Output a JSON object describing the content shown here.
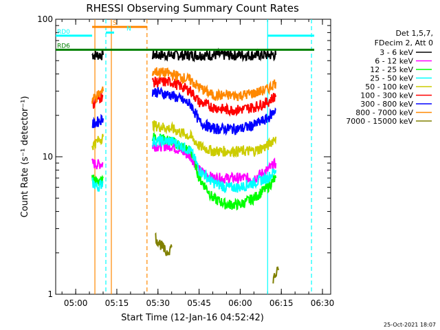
{
  "chart_data": {
    "type": "line",
    "title": "RHESSI Observing Summary Count Rates",
    "xlabel": "Start Time (12-Jan-16 04:52:42)",
    "ylabel": "Count Rate (s⁻¹ detector⁻¹)",
    "yscale": "log",
    "ylim": [
      1,
      100
    ],
    "xlim": [
      "04:52:42",
      "06:33:00"
    ],
    "x_ticks": [
      "05:00",
      "05:15",
      "05:30",
      "05:45",
      "06:00",
      "06:15",
      "06:30"
    ],
    "y_ticks": [
      "1",
      "10",
      "100"
    ],
    "legend_header": [
      "Det 1,5,7,",
      "FDecim 2, Att 0"
    ],
    "legend_position": "right",
    "series": [
      {
        "name": "3 - 6 keV",
        "color": "#000000",
        "segments": [
          {
            "x": [
              "05:06",
              "05:08",
              "05:10"
            ],
            "y": [
              55,
              55,
              55
            ]
          },
          {
            "x": [
              "05:28",
              "05:35",
              "05:45",
              "05:55",
              "06:05",
              "06:10",
              "06:13"
            ],
            "y": [
              55,
              55,
              55,
              55,
              55,
              55,
              55
            ]
          }
        ]
      },
      {
        "name": "6 - 12 keV",
        "color": "#ff00ff",
        "segments": [
          {
            "x": [
              "05:06",
              "05:08",
              "05:10"
            ],
            "y": [
              9,
              8.8,
              9
            ]
          },
          {
            "x": [
              "05:28",
              "05:35",
              "05:42",
              "05:45",
              "05:50",
              "05:55",
              "06:00",
              "06:05",
              "06:10",
              "06:13"
            ],
            "y": [
              12,
              12,
              10,
              8,
              7,
              7,
              7,
              7,
              8,
              9
            ]
          }
        ]
      },
      {
        "name": "12 - 25 keV",
        "color": "#00ff00",
        "segments": [
          {
            "x": [
              "05:06",
              "05:08",
              "05:10"
            ],
            "y": [
              7,
              6.5,
              7
            ]
          },
          {
            "x": [
              "05:28",
              "05:35",
              "05:42",
              "05:45",
              "05:50",
              "05:55",
              "06:00",
              "06:05",
              "06:10",
              "06:13"
            ],
            "y": [
              14,
              13,
              11,
              7,
              5,
              4.5,
              4.5,
              5,
              6,
              7
            ]
          }
        ]
      },
      {
        "name": "25 - 50 keV",
        "color": "#00ffff",
        "segments": [
          {
            "x": [
              "05:06",
              "05:08",
              "05:10"
            ],
            "y": [
              6.5,
              6,
              6.5
            ]
          },
          {
            "x": [
              "05:28",
              "05:35",
              "05:42",
              "05:45",
              "05:50",
              "05:55",
              "06:00",
              "06:05",
              "06:10",
              "06:13"
            ],
            "y": [
              13,
              13,
              11,
              8,
              6.5,
              6,
              6,
              6.5,
              7,
              8
            ]
          }
        ]
      },
      {
        "name": "50 - 100 keV",
        "color": "#cccc00",
        "segments": [
          {
            "x": [
              "05:06",
              "05:08",
              "05:10"
            ],
            "y": [
              12,
              13,
              14
            ]
          },
          {
            "x": [
              "05:28",
              "05:35",
              "05:42",
              "05:45",
              "05:50",
              "05:55",
              "06:00",
              "06:05",
              "06:10",
              "06:13"
            ],
            "y": [
              17,
              16,
              14,
              12,
              11,
              11,
              11,
              11,
              12,
              14
            ]
          }
        ]
      },
      {
        "name": "100 - 300 keV",
        "color": "#ff0000",
        "segments": [
          {
            "x": [
              "05:06",
              "05:08",
              "05:10"
            ],
            "y": [
              24,
              26,
              28
            ]
          },
          {
            "x": [
              "05:28",
              "05:35",
              "05:42",
              "05:45",
              "05:50",
              "05:55",
              "06:00",
              "06:05",
              "06:10",
              "06:13"
            ],
            "y": [
              35,
              35,
              30,
              25,
              23,
              22,
              22,
              23,
              25,
              28
            ]
          }
        ]
      },
      {
        "name": "300 - 800 keV",
        "color": "#0000ff",
        "segments": [
          {
            "x": [
              "05:06",
              "05:08",
              "05:10"
            ],
            "y": [
              17,
              18,
              19
            ]
          },
          {
            "x": [
              "05:28",
              "05:35",
              "05:42",
              "05:45",
              "05:50",
              "05:55",
              "06:00",
              "06:05",
              "06:10",
              "06:13"
            ],
            "y": [
              30,
              28,
              24,
              18,
              16,
              16,
              16,
              17,
              19,
              22
            ]
          }
        ]
      },
      {
        "name": "800 - 7000 keV",
        "color": "#ff8800",
        "segments": [
          {
            "x": [
              "05:06",
              "05:08",
              "05:10"
            ],
            "y": [
              26,
              28,
              30
            ]
          },
          {
            "x": [
              "05:28",
              "05:35",
              "05:42",
              "05:45",
              "05:50",
              "05:55",
              "06:00",
              "06:05",
              "06:10",
              "06:13"
            ],
            "y": [
              42,
              40,
              36,
              32,
              28,
              28,
              28,
              29,
              31,
              35
            ]
          }
        ]
      },
      {
        "name": "7000 - 15000 keV",
        "color": "#808000",
        "segments": [
          {
            "x": [
              "05:29",
              "05:31",
              "05:33",
              "05:35"
            ],
            "y": [
              2.6,
              2.3,
              2.0,
              2.2
            ]
          },
          {
            "x": [
              "06:12",
              "06:14"
            ],
            "y": [
              1.3,
              1.5
            ]
          }
        ]
      }
    ],
    "state_bars": [
      {
        "label": "S",
        "color": "#ff8800",
        "start": "05:06",
        "end": "05:26",
        "level": 88
      },
      {
        "label": "N",
        "color": "#00ffff",
        "start": "05:11",
        "end": "05:14",
        "level": 80
      },
      {
        "label": "RD0",
        "color": "#00ffff",
        "start": "04:52",
        "end": "05:06",
        "level": 76
      },
      {
        "label": "RD6",
        "color": "#008000",
        "start": "04:52",
        "end": "06:27",
        "level": 60
      },
      {
        "label": "",
        "color": "#00ffff",
        "start": "06:10",
        "end": "06:27",
        "level": 76
      }
    ],
    "vertical_markers": [
      {
        "time": "05:07",
        "color": "#ff8800",
        "style": "solid"
      },
      {
        "time": "05:11",
        "color": "#00ffff",
        "style": "dashed"
      },
      {
        "time": "05:13",
        "color": "#ff8800",
        "style": "solid"
      },
      {
        "time": "05:26",
        "color": "#ff8800",
        "style": "dashed"
      },
      {
        "time": "06:10",
        "color": "#00ffff",
        "style": "solid"
      },
      {
        "time": "06:26",
        "color": "#00ffff",
        "style": "dashed"
      }
    ],
    "timestamp": "25-Oct-2021 18:07"
  }
}
